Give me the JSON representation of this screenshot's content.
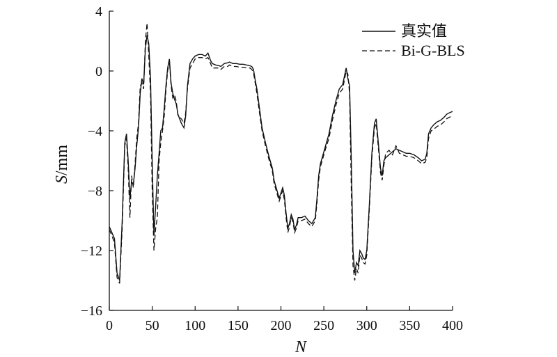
{
  "chart_data": {
    "type": "line",
    "title": "",
    "xlabel": "N",
    "ylabel": {
      "symbol": "S",
      "unit": "/mm"
    },
    "xlim": [
      0,
      400
    ],
    "ylim": [
      -16,
      4
    ],
    "x_ticks": [
      0,
      50,
      100,
      150,
      200,
      250,
      300,
      350,
      400
    ],
    "y_ticks": [
      4,
      0,
      -4,
      -8,
      -12,
      -16
    ],
    "y_tick_labels": [
      "4",
      "0",
      "−4",
      "−8",
      "−12",
      "−16"
    ],
    "grid": false,
    "legend": "top-right",
    "series": [
      {
        "name": "真实值",
        "style": "solid",
        "points": [
          [
            0,
            -10.4
          ],
          [
            3,
            -10.8
          ],
          [
            6,
            -11.2
          ],
          [
            9,
            -13.5
          ],
          [
            12,
            -14.0
          ],
          [
            15,
            -10.0
          ],
          [
            18,
            -4.8
          ],
          [
            20,
            -4.2
          ],
          [
            22,
            -6.0
          ],
          [
            24,
            -8.5
          ],
          [
            26,
            -7.4
          ],
          [
            28,
            -7.6
          ],
          [
            30,
            -6.5
          ],
          [
            32,
            -5.0
          ],
          [
            34,
            -3.8
          ],
          [
            36,
            -1.5
          ],
          [
            38,
            -0.5
          ],
          [
            40,
            -0.9
          ],
          [
            42,
            1.5
          ],
          [
            44,
            2.4
          ],
          [
            46,
            1.8
          ],
          [
            48,
            -0.5
          ],
          [
            50,
            -6.0
          ],
          [
            52,
            -11.0
          ],
          [
            54,
            -9.0
          ],
          [
            56,
            -7.0
          ],
          [
            58,
            -5.5
          ],
          [
            60,
            -4.0
          ],
          [
            62,
            -3.8
          ],
          [
            64,
            -2.5
          ],
          [
            66,
            -1.0
          ],
          [
            68,
            0.2
          ],
          [
            70,
            0.8
          ],
          [
            72,
            -0.8
          ],
          [
            74,
            -1.5
          ],
          [
            76,
            -1.9
          ],
          [
            78,
            -2.2
          ],
          [
            80,
            -2.9
          ],
          [
            84,
            -3.5
          ],
          [
            87,
            -3.8
          ],
          [
            89,
            -3.0
          ],
          [
            91,
            -1.0
          ],
          [
            94,
            0.5
          ],
          [
            97,
            0.8
          ],
          [
            100,
            1.0
          ],
          [
            104,
            1.1
          ],
          [
            108,
            1.1
          ],
          [
            112,
            1.0
          ],
          [
            115,
            1.2
          ],
          [
            118,
            0.7
          ],
          [
            120,
            0.5
          ],
          [
            124,
            0.4
          ],
          [
            128,
            0.35
          ],
          [
            130,
            0.3
          ],
          [
            134,
            0.5
          ],
          [
            138,
            0.55
          ],
          [
            140,
            0.6
          ],
          [
            144,
            0.5
          ],
          [
            148,
            0.5
          ],
          [
            152,
            0.45
          ],
          [
            156,
            0.45
          ],
          [
            160,
            0.4
          ],
          [
            164,
            0.35
          ],
          [
            166,
            0.3
          ],
          [
            168,
            0.1
          ],
          [
            170,
            -0.6
          ],
          [
            172,
            -1.2
          ],
          [
            175,
            -2.5
          ],
          [
            178,
            -3.8
          ],
          [
            182,
            -4.8
          ],
          [
            186,
            -5.7
          ],
          [
            190,
            -6.5
          ],
          [
            192,
            -7.3
          ],
          [
            195,
            -7.9
          ],
          [
            198,
            -8.5
          ],
          [
            202,
            -7.8
          ],
          [
            204,
            -8.3
          ],
          [
            206,
            -9.5
          ],
          [
            208,
            -10.5
          ],
          [
            210,
            -10.2
          ],
          [
            212,
            -9.6
          ],
          [
            214,
            -9.9
          ],
          [
            216,
            -10.6
          ],
          [
            218,
            -10.3
          ],
          [
            220,
            -9.8
          ],
          [
            224,
            -9.8
          ],
          [
            228,
            -9.7
          ],
          [
            232,
            -10.0
          ],
          [
            236,
            -10.2
          ],
          [
            240,
            -9.8
          ],
          [
            242,
            -8.5
          ],
          [
            244,
            -7.0
          ],
          [
            246,
            -6.2
          ],
          [
            248,
            -5.8
          ],
          [
            252,
            -5.0
          ],
          [
            256,
            -4.2
          ],
          [
            260,
            -3.0
          ],
          [
            264,
            -2.0
          ],
          [
            268,
            -1.2
          ],
          [
            272,
            -0.9
          ],
          [
            276,
            0.2
          ],
          [
            278,
            -0.5
          ],
          [
            280,
            -1.0
          ],
          [
            282,
            -6.0
          ],
          [
            284,
            -12.0
          ],
          [
            286,
            -13.5
          ],
          [
            288,
            -12.8
          ],
          [
            290,
            -13.0
          ],
          [
            292,
            -12.0
          ],
          [
            294,
            -12.2
          ],
          [
            296,
            -12.5
          ],
          [
            298,
            -12.6
          ],
          [
            300,
            -12.0
          ],
          [
            303,
            -9.0
          ],
          [
            306,
            -5.5
          ],
          [
            309,
            -3.5
          ],
          [
            311,
            -3.2
          ],
          [
            313,
            -4.5
          ],
          [
            316,
            -6.5
          ],
          [
            318,
            -7.0
          ],
          [
            320,
            -6.0
          ],
          [
            322,
            -5.8
          ],
          [
            326,
            -5.6
          ],
          [
            330,
            -5.4
          ],
          [
            334,
            -5.2
          ],
          [
            338,
            -5.3
          ],
          [
            342,
            -5.4
          ],
          [
            346,
            -5.5
          ],
          [
            350,
            -5.5
          ],
          [
            355,
            -5.6
          ],
          [
            360,
            -5.8
          ],
          [
            364,
            -6.0
          ],
          [
            368,
            -5.9
          ],
          [
            370,
            -5.5
          ],
          [
            372,
            -4.2
          ],
          [
            375,
            -3.8
          ],
          [
            378,
            -3.6
          ],
          [
            382,
            -3.4
          ],
          [
            386,
            -3.3
          ],
          [
            390,
            -3.1
          ],
          [
            393,
            -2.9
          ],
          [
            396,
            -2.8
          ],
          [
            400,
            -2.7
          ]
        ]
      },
      {
        "name": "Bi-G-BLS",
        "style": "dashed",
        "points": [
          [
            0,
            -10.6
          ],
          [
            3,
            -11.0
          ],
          [
            6,
            -11.5
          ],
          [
            9,
            -13.8
          ],
          [
            12,
            -14.2
          ],
          [
            15,
            -10.5
          ],
          [
            18,
            -5.0
          ],
          [
            20,
            -4.5
          ],
          [
            22,
            -6.5
          ],
          [
            24,
            -9.8
          ],
          [
            26,
            -7.0
          ],
          [
            28,
            -7.8
          ],
          [
            30,
            -6.2
          ],
          [
            32,
            -4.5
          ],
          [
            34,
            -3.5
          ],
          [
            36,
            -1.0
          ],
          [
            38,
            -0.8
          ],
          [
            40,
            -1.2
          ],
          [
            42,
            2.0
          ],
          [
            44,
            3.2
          ],
          [
            46,
            1.0
          ],
          [
            48,
            -1.5
          ],
          [
            50,
            -8.0
          ],
          [
            52,
            -12.0
          ],
          [
            54,
            -10.5
          ],
          [
            56,
            -9.8
          ],
          [
            58,
            -6.0
          ],
          [
            60,
            -4.8
          ],
          [
            62,
            -4.0
          ],
          [
            64,
            -3.0
          ],
          [
            66,
            -1.3
          ],
          [
            68,
            0.0
          ],
          [
            70,
            0.7
          ],
          [
            72,
            -1.0
          ],
          [
            74,
            -1.8
          ],
          [
            76,
            -1.6
          ],
          [
            78,
            -2.0
          ],
          [
            80,
            -3.0
          ],
          [
            84,
            -3.2
          ],
          [
            87,
            -3.5
          ],
          [
            89,
            -2.8
          ],
          [
            91,
            -1.2
          ],
          [
            94,
            0.2
          ],
          [
            97,
            0.5
          ],
          [
            100,
            0.8
          ],
          [
            104,
            0.9
          ],
          [
            108,
            0.9
          ],
          [
            112,
            0.8
          ],
          [
            115,
            0.9
          ],
          [
            118,
            0.5
          ],
          [
            120,
            0.2
          ],
          [
            124,
            0.2
          ],
          [
            128,
            0.2
          ],
          [
            130,
            0.1
          ],
          [
            134,
            0.3
          ],
          [
            138,
            0.3
          ],
          [
            140,
            0.4
          ],
          [
            144,
            0.3
          ],
          [
            148,
            0.3
          ],
          [
            152,
            0.25
          ],
          [
            156,
            0.25
          ],
          [
            160,
            0.2
          ],
          [
            164,
            0.2
          ],
          [
            166,
            0.1
          ],
          [
            168,
            -0.1
          ],
          [
            170,
            -0.8
          ],
          [
            172,
            -1.5
          ],
          [
            175,
            -2.8
          ],
          [
            178,
            -4.0
          ],
          [
            182,
            -5.0
          ],
          [
            186,
            -5.9
          ],
          [
            190,
            -6.7
          ],
          [
            192,
            -7.5
          ],
          [
            195,
            -8.1
          ],
          [
            198,
            -8.7
          ],
          [
            202,
            -8.0
          ],
          [
            204,
            -8.6
          ],
          [
            206,
            -9.8
          ],
          [
            208,
            -10.8
          ],
          [
            210,
            -10.4
          ],
          [
            212,
            -9.8
          ],
          [
            214,
            -10.1
          ],
          [
            216,
            -10.8
          ],
          [
            218,
            -10.5
          ],
          [
            220,
            -10.0
          ],
          [
            224,
            -10.0
          ],
          [
            228,
            -9.9
          ],
          [
            232,
            -10.2
          ],
          [
            236,
            -10.4
          ],
          [
            240,
            -10.0
          ],
          [
            242,
            -8.8
          ],
          [
            244,
            -7.3
          ],
          [
            246,
            -6.4
          ],
          [
            248,
            -6.0
          ],
          [
            252,
            -5.2
          ],
          [
            256,
            -4.5
          ],
          [
            260,
            -3.3
          ],
          [
            264,
            -2.3
          ],
          [
            268,
            -1.5
          ],
          [
            272,
            -1.2
          ],
          [
            276,
            0.0
          ],
          [
            278,
            -0.2
          ],
          [
            280,
            -1.5
          ],
          [
            282,
            -8.0
          ],
          [
            284,
            -13.0
          ],
          [
            286,
            -14.0
          ],
          [
            288,
            -13.2
          ],
          [
            290,
            -13.5
          ],
          [
            292,
            -12.3
          ],
          [
            294,
            -12.5
          ],
          [
            296,
            -12.8
          ],
          [
            298,
            -12.9
          ],
          [
            300,
            -12.3
          ],
          [
            303,
            -9.3
          ],
          [
            306,
            -5.8
          ],
          [
            309,
            -3.8
          ],
          [
            311,
            -3.5
          ],
          [
            313,
            -4.8
          ],
          [
            316,
            -6.8
          ],
          [
            318,
            -7.3
          ],
          [
            320,
            -6.3
          ],
          [
            322,
            -5.5
          ],
          [
            326,
            -5.3
          ],
          [
            330,
            -5.6
          ],
          [
            334,
            -5.0
          ],
          [
            338,
            -5.5
          ],
          [
            342,
            -5.6
          ],
          [
            346,
            -5.7
          ],
          [
            350,
            -5.7
          ],
          [
            355,
            -5.8
          ],
          [
            360,
            -6.0
          ],
          [
            364,
            -6.2
          ],
          [
            368,
            -6.1
          ],
          [
            370,
            -5.8
          ],
          [
            372,
            -4.5
          ],
          [
            375,
            -4.0
          ],
          [
            378,
            -3.9
          ],
          [
            382,
            -3.7
          ],
          [
            386,
            -3.6
          ],
          [
            390,
            -3.4
          ],
          [
            393,
            -3.2
          ],
          [
            396,
            -3.1
          ],
          [
            400,
            -3.0
          ]
        ]
      }
    ]
  }
}
